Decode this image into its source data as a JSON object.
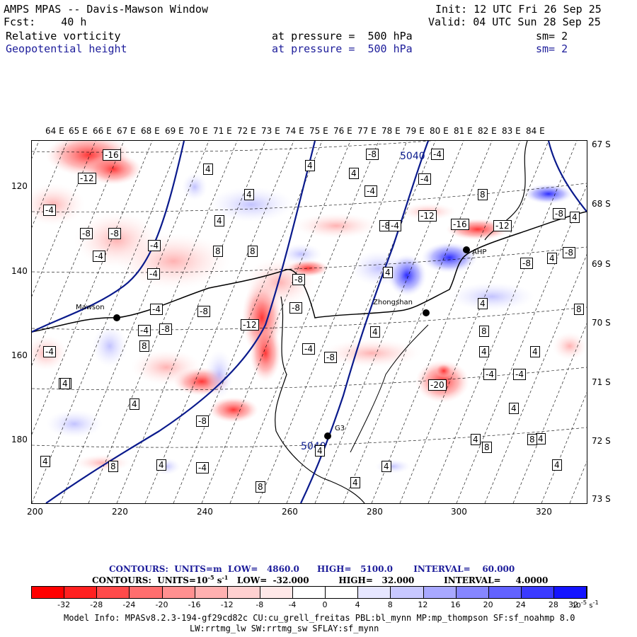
{
  "header": {
    "title": "AMPS MPAS -- Davis-Mawson Window",
    "fcst": "Fcst:    40 h",
    "init": "Init: 12 UTC Fri 26 Sep 25",
    "valid": "Valid: 04 UTC Sun 28 Sep 25",
    "field1": {
      "name": "Relative vorticity",
      "level": "at pressure =  500 hPa",
      "sm": "sm= 2"
    },
    "field2": {
      "name": "Geopotential height",
      "level": "at pressure =  500 hPa",
      "sm": "sm= 2"
    }
  },
  "axes": {
    "top_lon": [
      "64 E",
      "65 E",
      "66 E",
      "67 E",
      "68 E",
      "69 E",
      "70 E",
      "71 E",
      "72 E",
      "73 E",
      "74 E",
      "75 E",
      "76 E",
      "77 E",
      "78 E",
      "79 E",
      "80 E",
      "81 E",
      "82 E",
      "83 E",
      "84 E"
    ],
    "right_lat": [
      "67 S",
      "68 S",
      "69 S",
      "70 S",
      "71 S",
      "72 S",
      "73 S"
    ],
    "left_y": [
      "120",
      "140",
      "160",
      "180"
    ],
    "bottom_x": [
      "200",
      "220",
      "240",
      "260",
      "280",
      "300",
      "320"
    ]
  },
  "stations": [
    {
      "name": "Mawson"
    },
    {
      "name": "Zhongshan"
    },
    {
      "name": "G3"
    },
    {
      "name": "AHP"
    }
  ],
  "height_labels": [
    "5040",
    "5040"
  ],
  "vort_labels": [
    "-16",
    "-12",
    "-4",
    "-8",
    "-4",
    "-4",
    "-8",
    "-4",
    "-4",
    "-8",
    "-8",
    "-12",
    "-8",
    "-8",
    "-4",
    "-12",
    "-16",
    "-12",
    "-4",
    "-8",
    "-8",
    "-8",
    "-4",
    "-4",
    "-8",
    "-4",
    "-20",
    "-4",
    "-4",
    "-8",
    "-4",
    "-4",
    "-8",
    "-4",
    "-4",
    "-8",
    "4",
    "4",
    "8",
    "4",
    "4",
    "8",
    "4",
    "4",
    "8",
    "4",
    "4",
    "8",
    "4",
    "4",
    "4",
    "4",
    "8",
    "4",
    "4",
    "8",
    "4",
    "4",
    "4",
    "8",
    "4",
    "4",
    "4",
    "8",
    "4",
    "8",
    "8",
    "4",
    "4"
  ],
  "chart_data": {
    "type": "heatmap",
    "title": "AMPS MPAS -- Davis-Mawson Window",
    "fields": [
      {
        "name": "Relative vorticity",
        "units": "10^-5 s^-1",
        "low": -32.0,
        "high": 32.0,
        "interval": 4.0
      },
      {
        "name": "Geopotential height",
        "units": "m",
        "low": 4860.0,
        "high": 5100.0,
        "interval": 60.0
      }
    ],
    "colorbar_levels": [
      -32,
      -28,
      -24,
      -20,
      -16,
      -12,
      -8,
      -4,
      0,
      4,
      8,
      12,
      16,
      20,
      24,
      28,
      32
    ],
    "colorbar_colors": [
      "#ff0000",
      "#ff2020",
      "#ff4a4a",
      "#ff6e6e",
      "#ff9090",
      "#ffb0b0",
      "#ffd0d0",
      "#ffe8e8",
      "#ffffff",
      "#ffffff",
      "#e6e6ff",
      "#c8c8ff",
      "#a8a8ff",
      "#8686ff",
      "#6262ff",
      "#3a3aff",
      "#1414ff"
    ],
    "xlim": [
      200,
      330
    ],
    "ylim": [
      195,
      110
    ]
  },
  "footer": {
    "contours1": "CONTOURS:  UNITS=m  LOW=   4860.0      HIGH=   5100.0       INTERVAL=    60.000",
    "contours2": "CONTOURS:  UNITS=10",
    "contours2b": " s",
    "contours2c": "   LOW=  -32.000          HIGH=   32.000          INTERVAL=     4.0000",
    "exp": "-5",
    "exp2": "-1",
    "cb_units": "10",
    "cb_units_exp": "-5",
    "cb_units_s": " s",
    "cb_units_s_exp": "-1",
    "model_info1": "Model Info: MPASv8.2.3-194-gf29cd82c CU:cu_grell_freitas PBL:bl_mynn MP:mp_thompson SF:sf_noahmp 8.0",
    "model_info2": "LW:rrtmg_lw SW:rrtmg_sw SFLAY:sf_mynn"
  }
}
